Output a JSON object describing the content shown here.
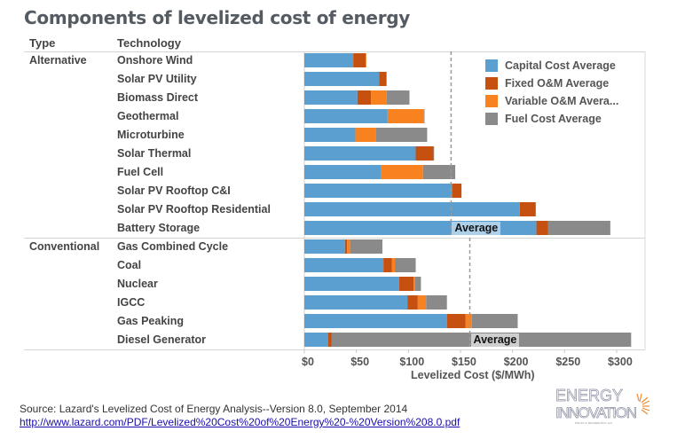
{
  "title": "Components of levelized cost of energy",
  "headers": {
    "type": "Type",
    "technology": "Technology"
  },
  "source": "Source: Lazard's Levelized Cost of Energy Analysis--Version 8.0, September 2014",
  "link": "http://www.lazard.com/PDF/Levelized%20Cost%20of%20Energy%20-%20Version%208.0.pdf",
  "logo": {
    "line1": "ENERGY",
    "line2": "INNOVATION",
    "line3": "POLICY & TECHNOLOGY, LLC"
  },
  "colors": {
    "capital": "#5b9fd1",
    "fixed": "#c5500f",
    "variable": "#f8821f",
    "fuel": "#8a8a8a"
  },
  "chart_data": {
    "type": "bar",
    "orientation": "horizontal-stacked",
    "xlabel": "Levelized Cost ($/MWh)",
    "xlim": [
      0,
      327
    ],
    "xticks": [
      "$0",
      "$50",
      "$100",
      "$150",
      "$200",
      "$250",
      "$300"
    ],
    "xtick_values": [
      0,
      50,
      100,
      150,
      200,
      250,
      300
    ],
    "legend_position": "top-right",
    "series_names": [
      "Capital Cost Average",
      "Fixed O&M Average",
      "Variable O&M Avera...",
      "Fuel Cost Average"
    ],
    "groups": [
      {
        "type": "Alternative",
        "average_label": "Average",
        "average": 141,
        "rows": [
          {
            "tech": "Onshore Wind",
            "values": [
              47,
              12,
              0.6,
              0
            ]
          },
          {
            "tech": "Solar PV Utility",
            "values": [
              72,
              7,
              0,
              0
            ]
          },
          {
            "tech": "Biomass Direct",
            "values": [
              51,
              13,
              15,
              22
            ]
          },
          {
            "tech": "Geothermal",
            "values": [
              80,
              0,
              35,
              0.5
            ]
          },
          {
            "tech": "Microturbine",
            "values": [
              49,
              0,
              20,
              49
            ]
          },
          {
            "tech": "Solar Thermal",
            "values": [
              107,
              17,
              0,
              0.7
            ]
          },
          {
            "tech": "Fuel Cell",
            "values": [
              74,
              0,
              40,
              31
            ]
          },
          {
            "tech": "Solar PV Rooftop C&I",
            "values": [
              142,
              9,
              0,
              0
            ]
          },
          {
            "tech": "Solar PV Rooftop Residential",
            "values": [
              207,
              15,
              0,
              0.5
            ]
          },
          {
            "tech": "Battery Storage",
            "values": [
              223,
              11,
              0,
              60
            ]
          }
        ]
      },
      {
        "type": "Conventional",
        "average_label": "Average",
        "average": 159,
        "rows": [
          {
            "tech": "Gas Combined Cycle",
            "values": [
              39,
              2,
              3,
              31
            ]
          },
          {
            "tech": "Coal",
            "values": [
              76,
              8,
              3,
              20
            ]
          },
          {
            "tech": "Nuclear",
            "values": [
              91,
              14,
              1,
              6
            ]
          },
          {
            "tech": "IGCC",
            "values": [
              99,
              10,
              8,
              20
            ]
          },
          {
            "tech": "Gas Peaking",
            "values": [
              137,
              18,
              6,
              44
            ]
          },
          {
            "tech": "Diesel Generator",
            "values": [
              23,
              3,
              0,
              288
            ]
          }
        ]
      }
    ]
  }
}
